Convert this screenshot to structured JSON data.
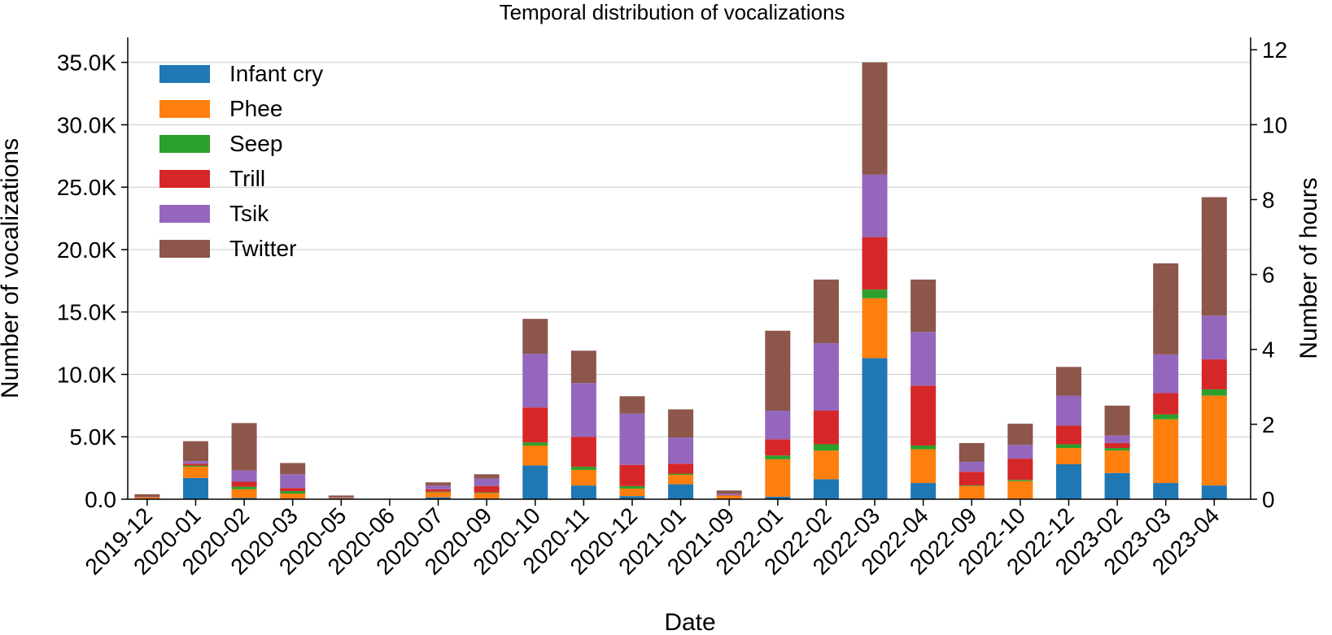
{
  "chart_data": {
    "type": "bar",
    "stacked": true,
    "title": "Temporal distribution of vocalizations",
    "xlabel": "Date",
    "ylabel": "Number of vocalizations",
    "y2label": "Number of hours",
    "ylim": [
      0,
      37000
    ],
    "y2lim": [
      0,
      12.33
    ],
    "yticks": [
      {
        "value": 0,
        "label": "0.0"
      },
      {
        "value": 5000,
        "label": "5.0K"
      },
      {
        "value": 10000,
        "label": "10.0K"
      },
      {
        "value": 15000,
        "label": "15.0K"
      },
      {
        "value": 20000,
        "label": "20.0K"
      },
      {
        "value": 25000,
        "label": "25.0K"
      },
      {
        "value": 30000,
        "label": "30.0K"
      },
      {
        "value": 35000,
        "label": "35.0K"
      }
    ],
    "y2ticks": [
      {
        "value": 0,
        "label": "0"
      },
      {
        "value": 2,
        "label": "2"
      },
      {
        "value": 4,
        "label": "4"
      },
      {
        "value": 6,
        "label": "6"
      },
      {
        "value": 8,
        "label": "8"
      },
      {
        "value": 10,
        "label": "10"
      },
      {
        "value": 12,
        "label": "12"
      }
    ],
    "grid": true,
    "legend_position": "top-left",
    "categories": [
      "2019-12",
      "2020-01",
      "2020-02",
      "2020-03",
      "2020-05",
      "2020-06",
      "2020-07",
      "2020-09",
      "2020-10",
      "2020-11",
      "2020-12",
      "2021-01",
      "2021-09",
      "2022-01",
      "2022-02",
      "2022-03",
      "2022-04",
      "2022-09",
      "2022-10",
      "2022-12",
      "2023-02",
      "2023-03",
      "2023-04"
    ],
    "series": [
      {
        "name": "Infant cry",
        "color": "#1f77b4",
        "values": [
          30,
          1700,
          100,
          50,
          0,
          0,
          150,
          50,
          2700,
          1100,
          250,
          1200,
          30,
          200,
          1600,
          11300,
          1300,
          50,
          50,
          2800,
          2100,
          1300,
          1100
        ]
      },
      {
        "name": "Phee",
        "color": "#ff7f0e",
        "values": [
          100,
          900,
          700,
          400,
          80,
          20,
          400,
          450,
          1600,
          1250,
          600,
          750,
          250,
          3000,
          2300,
          4800,
          2700,
          1000,
          1400,
          1300,
          1800,
          5100,
          7200
        ]
      },
      {
        "name": "Seep",
        "color": "#2ca02c",
        "values": [
          10,
          100,
          200,
          200,
          10,
          0,
          50,
          50,
          250,
          250,
          200,
          100,
          20,
          300,
          500,
          700,
          300,
          50,
          100,
          300,
          200,
          400,
          500
        ]
      },
      {
        "name": "Trill",
        "color": "#d62728",
        "values": [
          20,
          150,
          400,
          250,
          20,
          0,
          200,
          500,
          2800,
          2400,
          1700,
          800,
          50,
          1300,
          2700,
          4200,
          4800,
          1100,
          1700,
          1500,
          400,
          1700,
          2400
        ]
      },
      {
        "name": "Tsik",
        "color": "#9467bd",
        "values": [
          20,
          200,
          900,
          1100,
          30,
          0,
          300,
          600,
          4300,
          4300,
          4100,
          2100,
          100,
          2300,
          5400,
          5000,
          4300,
          800,
          1100,
          2400,
          600,
          3100,
          3500
        ]
      },
      {
        "name": "Twitter",
        "color": "#8c564b",
        "values": [
          220,
          1600,
          3800,
          900,
          160,
          0,
          250,
          350,
          2800,
          2600,
          1400,
          2250,
          250,
          6400,
          5100,
          9000,
          4200,
          1500,
          1700,
          2300,
          2400,
          7300,
          9500
        ]
      }
    ]
  }
}
